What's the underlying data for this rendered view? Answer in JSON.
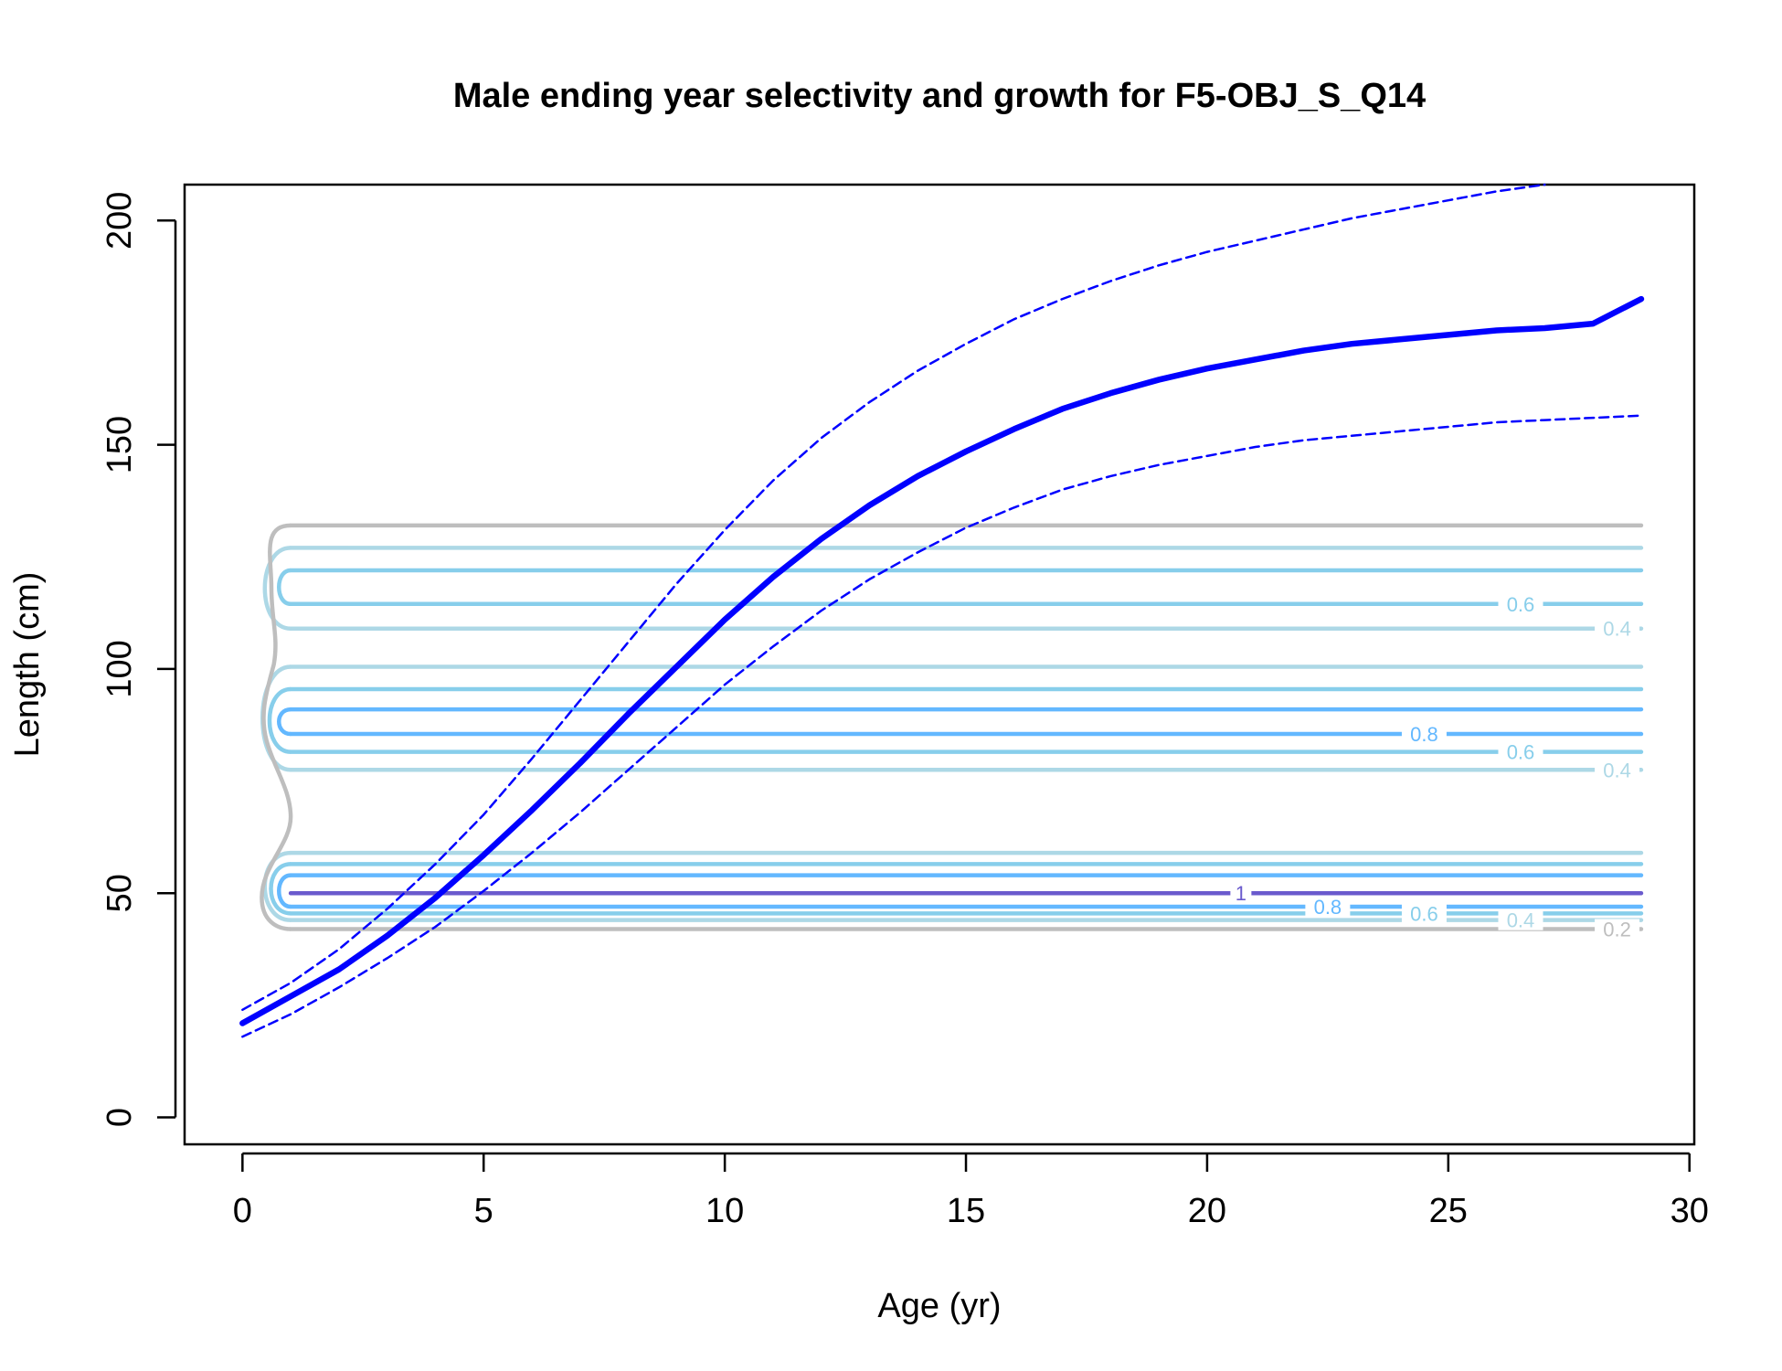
{
  "chart_data": {
    "type": "line",
    "title": "Male ending year selectivity and growth for F5-OBJ_S_Q14",
    "xlabel": "Age (yr)",
    "ylabel": "Length (cm)",
    "xlim": [
      -1.2,
      30.1
    ],
    "ylim": [
      -6,
      208
    ],
    "x_ticks": [
      "0",
      "5",
      "10",
      "15",
      "20",
      "25",
      "30"
    ],
    "y_ticks": [
      "0",
      "50",
      "100",
      "150",
      "200"
    ],
    "grid": false,
    "colors": {
      "growth": "#0000ff",
      "level_0_2": "#bebebe",
      "level_0_4": "#add8e6",
      "level_0_6": "#87ceeb",
      "level_0_8": "#63b8ff",
      "level_1": "#6a5acd"
    },
    "series": [
      {
        "role": "mean-growth",
        "style": "solid",
        "x": [
          0,
          1,
          2,
          3,
          4,
          5,
          6,
          7,
          8,
          9,
          10,
          11,
          12,
          13,
          14,
          15,
          16,
          17,
          18,
          19,
          20,
          21,
          22,
          23,
          24,
          25,
          26,
          27,
          28,
          29
        ],
        "y": [
          21,
          27,
          33,
          40.5,
          49,
          58.5,
          68.5,
          79,
          90,
          100.5,
          111,
          120.5,
          129,
          136.5,
          143,
          148.5,
          153.5,
          158,
          161.5,
          164.5,
          167,
          169,
          171,
          172.5,
          173.5,
          174.5,
          175.5,
          176,
          177,
          182.5
        ]
      },
      {
        "role": "upper-interval",
        "style": "dashed",
        "x": [
          0,
          1,
          2,
          3,
          4,
          5,
          6,
          7,
          8,
          9,
          10,
          11,
          12,
          13,
          14,
          15,
          16,
          17,
          18,
          19,
          20,
          21,
          22,
          23,
          24,
          25,
          26,
          27
        ],
        "y": [
          24,
          30,
          37.5,
          46.5,
          56.5,
          67.5,
          80,
          93,
          106,
          119,
          131,
          142,
          151.5,
          159.5,
          166.5,
          172.5,
          178,
          182.5,
          186.5,
          190,
          193,
          195.5,
          198,
          200.5,
          202.5,
          204.5,
          206.5,
          208
        ]
      },
      {
        "role": "lower-interval",
        "style": "dashed",
        "x": [
          0,
          1,
          2,
          3,
          4,
          5,
          6,
          7,
          8,
          9,
          10,
          11,
          12,
          13,
          14,
          15,
          16,
          17,
          18,
          19,
          20,
          21,
          22,
          23,
          24,
          25,
          26,
          27,
          28,
          29
        ],
        "y": [
          18,
          23,
          29,
          35.5,
          42.5,
          50.5,
          59,
          68,
          77.5,
          87,
          96.5,
          105,
          113,
          120,
          126,
          131.5,
          136,
          140,
          143,
          145.5,
          147.5,
          149.5,
          151,
          152,
          153,
          154,
          155,
          155.5,
          156,
          156.5
        ]
      }
    ],
    "contours": {
      "x_start": 1,
      "x_end": 29,
      "lines": [
        {
          "level": "0.2",
          "y": 132
        },
        {
          "level": "0.4",
          "y": 127
        },
        {
          "level": "0.6",
          "y": 122
        },
        {
          "level": "0.6",
          "y": 114.5
        },
        {
          "level": "0.4",
          "y": 109
        },
        {
          "level": "0.4",
          "y": 100.5
        },
        {
          "level": "0.6",
          "y": 95.5
        },
        {
          "level": "0.8",
          "y": 91
        },
        {
          "level": "0.8",
          "y": 85.5
        },
        {
          "level": "0.6",
          "y": 81.5
        },
        {
          "level": "0.4",
          "y": 77.5
        },
        {
          "level": "0.4",
          "y": 59
        },
        {
          "level": "0.6",
          "y": 56.5
        },
        {
          "level": "0.8",
          "y": 54
        },
        {
          "level": "1",
          "y": 50
        },
        {
          "level": "0.8",
          "y": 47
        },
        {
          "level": "0.6",
          "y": 45.5
        },
        {
          "level": "0.4",
          "y": 44
        },
        {
          "level": "0.2",
          "y": 42
        }
      ],
      "labels": [
        {
          "text": "0.6",
          "x": 26.5,
          "y": 114.5,
          "level": "0.6"
        },
        {
          "text": "0.4",
          "x": 28.5,
          "y": 109,
          "level": "0.4"
        },
        {
          "text": "0.8",
          "x": 24.5,
          "y": 85.5,
          "level": "0.8"
        },
        {
          "text": "0.6",
          "x": 26.5,
          "y": 81.5,
          "level": "0.6"
        },
        {
          "text": "0.4",
          "x": 28.5,
          "y": 77.5,
          "level": "0.4"
        },
        {
          "text": "1",
          "x": 20.7,
          "y": 50,
          "level": "1"
        },
        {
          "text": "0.8",
          "x": 22.5,
          "y": 47,
          "level": "0.8"
        },
        {
          "text": "0.6",
          "x": 24.5,
          "y": 45.5,
          "level": "0.6"
        },
        {
          "text": "0.4",
          "x": 26.5,
          "y": 44,
          "level": "0.4"
        },
        {
          "text": "0.2",
          "x": 28.5,
          "y": 42,
          "level": "0.2"
        }
      ]
    }
  }
}
